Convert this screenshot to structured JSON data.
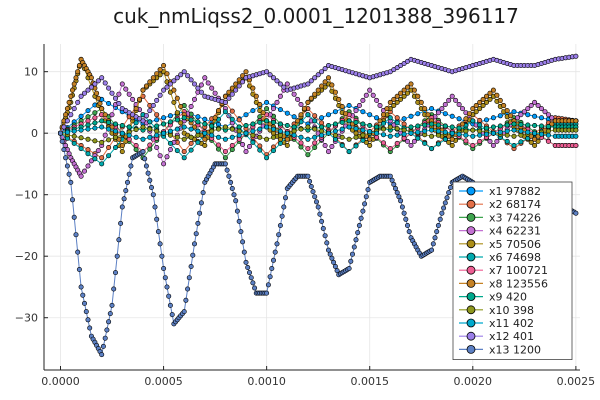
{
  "chart_data": {
    "type": "scatter",
    "title": "cuk_nmLiqss2_0.0001_1201388_396117",
    "xlabel": "",
    "ylabel": "",
    "xlim": [
      -8e-05,
      0.00252
    ],
    "ylim": [
      -38.5,
      14.5
    ],
    "xticks": [
      0.0,
      0.0005,
      0.001,
      0.0015,
      0.002,
      0.0025
    ],
    "xtick_labels": [
      "0.0000",
      "0.0005",
      "0.0010",
      "0.0015",
      "0.0020",
      "0.0025"
    ],
    "yticks": [
      -30,
      -20,
      -10,
      0,
      10
    ],
    "ytick_labels": [
      "−30",
      "−20",
      "−10",
      "0",
      "10"
    ],
    "grid": true,
    "legend_position": "bottom-right",
    "series": [
      {
        "name": "x1 97882",
        "color": "#009AFA",
        "x": [
          0.0,
          0.0002,
          0.0004,
          0.0006,
          0.0008,
          0.001,
          0.0012,
          0.0014,
          0.0016,
          0.0018,
          0.002,
          0.0022,
          0.0024,
          0.0025
        ],
        "y": [
          0,
          5.5,
          1.5,
          3.5,
          1.0,
          5.0,
          1.5,
          4.5,
          1.5,
          4.0,
          1.5,
          3.5,
          2.0,
          2.0
        ]
      },
      {
        "name": "x2 68174",
        "color": "#E36F47",
        "x": [
          0.0,
          0.0002,
          0.0004,
          0.0006,
          0.0008,
          0.001,
          0.0012,
          0.0014,
          0.0016,
          0.0018,
          0.002,
          0.0022,
          0.0024,
          0.0025
        ],
        "y": [
          0,
          -4.0,
          6.0,
          -3.0,
          5.0,
          -3.5,
          4.0,
          -3.0,
          3.5,
          -2.5,
          3.0,
          -2.5,
          2.5,
          2.0
        ]
      },
      {
        "name": "x3 74226",
        "color": "#3EA44E",
        "x": [
          0.0,
          0.0002,
          0.0004,
          0.0006,
          0.0008,
          0.001,
          0.0012,
          0.0014,
          0.0016,
          0.0018,
          0.002,
          0.0022,
          0.0024,
          0.0025
        ],
        "y": [
          0,
          4.0,
          -4.0,
          4.5,
          -4.0,
          4.0,
          -3.5,
          3.5,
          -3.0,
          3.0,
          -2.5,
          2.5,
          -2.0,
          -2.0
        ]
      },
      {
        "name": "x4 62231",
        "color": "#C371D2",
        "x": [
          0.0,
          5e-05,
          0.0001,
          0.0002,
          0.0003,
          0.0004,
          0.0005,
          0.0006,
          0.0007,
          0.0008,
          0.0009,
          0.001,
          0.0011,
          0.0012,
          0.0013,
          0.0014,
          0.0015,
          0.0016,
          0.0017,
          0.0018,
          0.0019,
          0.002,
          0.0021,
          0.0022,
          0.0023,
          0.0024,
          0.0025
        ],
        "y": [
          0,
          -4,
          -7,
          -2,
          8,
          3,
          -5,
          2,
          9,
          4,
          -3,
          2,
          8,
          3,
          -3,
          2,
          7,
          2,
          -2,
          2,
          6,
          2,
          -2,
          2,
          5,
          2,
          2
        ]
      },
      {
        "name": "x5 70506",
        "color": "#AC8E18",
        "x": [
          0.0,
          5e-05,
          0.0001,
          0.0002,
          0.0003,
          0.0004,
          0.0005,
          0.0006,
          0.0007,
          0.0008,
          0.0009,
          0.001,
          0.0011,
          0.0012,
          0.0013,
          0.0014,
          0.0015,
          0.0016,
          0.0017,
          0.0018,
          0.0019,
          0.002,
          0.0021,
          0.0022,
          0.0023,
          0.0024,
          0.0025
        ],
        "y": [
          0,
          5,
          12,
          3,
          -3,
          7,
          10,
          0,
          -2,
          6,
          9,
          1,
          -2,
          5,
          8,
          1,
          -2,
          4,
          7,
          1,
          -2,
          3,
          6,
          1,
          -2,
          2,
          2
        ]
      },
      {
        "name": "x6 74698",
        "color": "#00AAAE",
        "x": [
          0.0,
          0.0002,
          0.0004,
          0.0006,
          0.0008,
          0.001,
          0.0012,
          0.0014,
          0.0016,
          0.0018,
          0.002,
          0.0022,
          0.0024,
          0.0025
        ],
        "y": [
          0,
          -5.0,
          3.0,
          -4.0,
          3.5,
          -4.0,
          3.0,
          -3.0,
          2.5,
          -2.5,
          2.0,
          -2.0,
          1.5,
          1.5
        ]
      },
      {
        "name": "x7 100721",
        "color": "#ED5E93",
        "x": [
          0.0,
          0.0002,
          0.0004,
          0.0006,
          0.0008,
          0.001,
          0.0012,
          0.0014,
          0.0016,
          0.0018,
          0.002,
          0.0022,
          0.0024,
          0.0025
        ],
        "y": [
          0,
          3.0,
          -3.0,
          3.5,
          -3.0,
          3.0,
          -2.5,
          3.0,
          -2.5,
          2.5,
          -2.0,
          2.0,
          -2.0,
          -2.0
        ]
      },
      {
        "name": "x8 123556",
        "color": "#C68225",
        "x": [
          0.0,
          5e-05,
          0.0001,
          0.00015,
          0.0002,
          0.0003,
          0.0004,
          0.0005,
          0.0006,
          0.0007,
          0.0008,
          0.0009,
          0.001,
          0.0011,
          0.0012,
          0.0013,
          0.0014,
          0.0015,
          0.0016,
          0.0017,
          0.0018,
          0.0019,
          0.002,
          0.0021,
          0.0022,
          0.0023,
          0.0024,
          0.0025
        ],
        "y": [
          0,
          6,
          12,
          9,
          4,
          -2,
          7,
          11,
          3,
          -1,
          6,
          10,
          2,
          -1,
          5,
          9,
          2,
          -1,
          5,
          8,
          2,
          -1,
          4,
          7,
          2,
          -1,
          2,
          2
        ]
      },
      {
        "name": "x9 420",
        "color": "#00A98D",
        "x": [
          0.0,
          0.0002,
          0.0004,
          0.0006,
          0.0008,
          0.001,
          0.0012,
          0.0014,
          0.0016,
          0.0018,
          0.002,
          0.0022,
          0.0024,
          0.0025
        ],
        "y": [
          0,
          2.0,
          0.5,
          2.5,
          0.5,
          2.0,
          0.5,
          2.0,
          0.5,
          1.5,
          0.5,
          1.5,
          1.0,
          1.0
        ]
      },
      {
        "name": "x10 398",
        "color": "#8E971E",
        "x": [
          0.0,
          0.0002,
          0.0004,
          0.0006,
          0.0008,
          0.001,
          0.0012,
          0.0014,
          0.0016,
          0.0018,
          0.002,
          0.0022,
          0.0024,
          0.0025
        ],
        "y": [
          0,
          -1.5,
          1.0,
          -1.0,
          1.0,
          -1.0,
          1.0,
          -1.0,
          1.0,
          -0.5,
          0.5,
          -0.5,
          0.5,
          0.5
        ]
      },
      {
        "name": "x11 402",
        "color": "#00A9CD",
        "x": [
          0.0,
          0.0002,
          0.0004,
          0.0006,
          0.0008,
          0.001,
          0.0012,
          0.0014,
          0.0016,
          0.0018,
          0.002,
          0.0022,
          0.0024,
          0.0025
        ],
        "y": [
          0,
          1.0,
          -1.0,
          1.0,
          -1.0,
          1.0,
          -1.0,
          1.0,
          -0.5,
          0.5,
          -0.5,
          0.5,
          -0.5,
          -0.5
        ]
      },
      {
        "name": "x12 401",
        "color": "#9B7FE9",
        "x": [
          0.0,
          0.0001,
          0.0002,
          0.0003,
          0.0004,
          0.0005,
          0.0006,
          0.0007,
          0.0008,
          0.0009,
          0.001,
          0.0011,
          0.0012,
          0.0013,
          0.0014,
          0.0015,
          0.0016,
          0.0017,
          0.0018,
          0.0019,
          0.002,
          0.0021,
          0.0022,
          0.0023,
          0.0024,
          0.0025
        ],
        "y": [
          0,
          6,
          9,
          4,
          2,
          7,
          10,
          6,
          5,
          9,
          10,
          7,
          8,
          11,
          10,
          9,
          10,
          12,
          11,
          10,
          11,
          12,
          11,
          11,
          12,
          12.5
        ]
      },
      {
        "name": "x13 1200",
        "color": "#5C80C4",
        "x": [
          0.0,
          5e-05,
          0.0001,
          0.00015,
          0.0002,
          0.00025,
          0.0003,
          0.00035,
          0.0004,
          0.00045,
          0.0005,
          0.00055,
          0.0006,
          0.00065,
          0.0007,
          0.00075,
          0.0008,
          0.00085,
          0.0009,
          0.00095,
          0.001,
          0.00105,
          0.0011,
          0.00115,
          0.0012,
          0.00125,
          0.0013,
          0.00135,
          0.0014,
          0.00145,
          0.0015,
          0.00155,
          0.0016,
          0.00165,
          0.0017,
          0.00175,
          0.0018,
          0.00185,
          0.0019,
          0.00195,
          0.002,
          0.00205,
          0.0021,
          0.00215,
          0.0022,
          0.00225,
          0.0023,
          0.00235,
          0.0024,
          0.00245,
          0.0025
        ],
        "y": [
          0,
          -8,
          -25,
          -33,
          -36,
          -28,
          -12,
          -4,
          -3,
          -10,
          -22,
          -31,
          -29,
          -18,
          -8,
          -5,
          -5,
          -11,
          -21,
          -26,
          -26,
          -18,
          -9,
          -7,
          -7,
          -12,
          -19,
          -23,
          -22,
          -15,
          -8,
          -7,
          -7,
          -11,
          -17,
          -20,
          -19,
          -13,
          -8,
          -7,
          -8,
          -11,
          -15,
          -17,
          -16,
          -12,
          -9,
          -9,
          -10,
          -12,
          -13
        ]
      }
    ]
  }
}
